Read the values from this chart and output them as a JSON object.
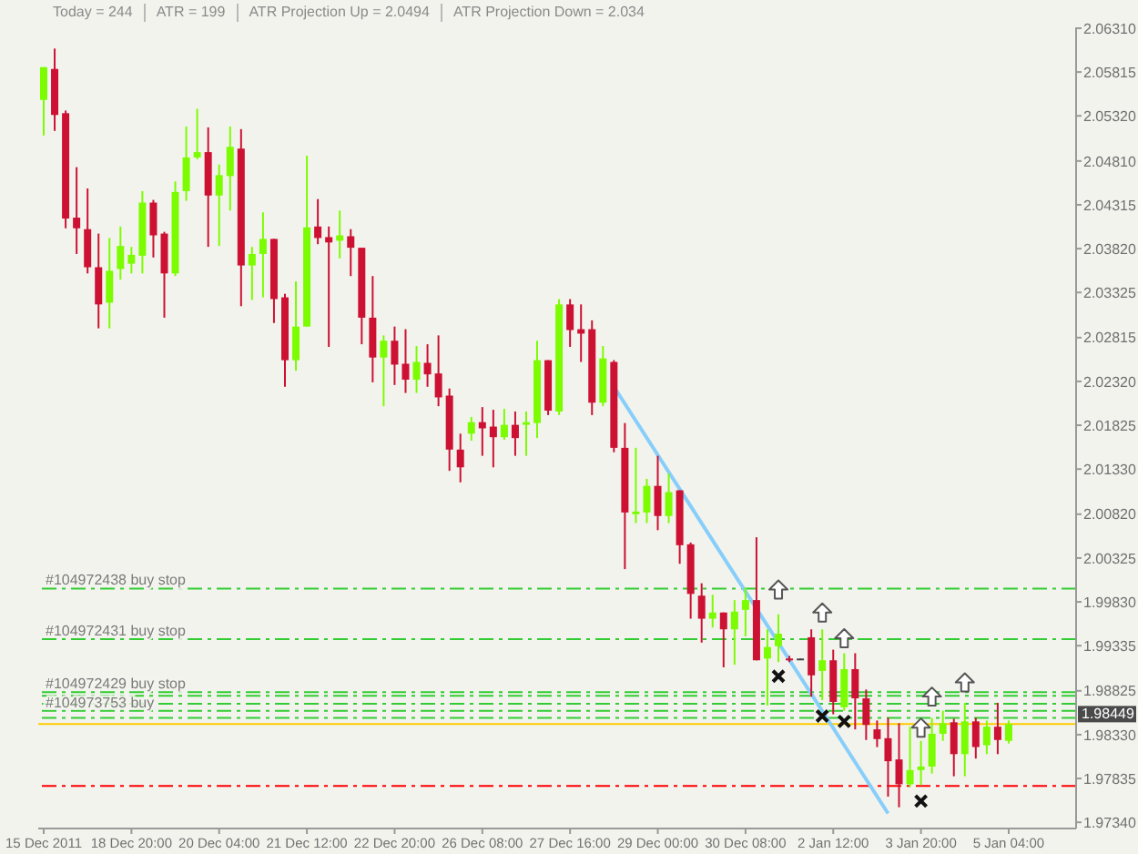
{
  "chart_data": {
    "type": "candlestick",
    "annotations": [
      "Today = 244",
      "ATR = 199",
      "ATR Projection Up = 2.0494",
      "ATR Projection Down = 2.034"
    ],
    "categories": [
      "15 Dec 2011",
      null,
      null,
      null,
      null,
      null,
      null,
      null,
      "18 Dec 20:00",
      null,
      null,
      null,
      null,
      null,
      null,
      null,
      "20 Dec 04:00",
      null,
      null,
      null,
      null,
      null,
      null,
      null,
      "21 Dec 12:00",
      null,
      null,
      null,
      null,
      null,
      null,
      null,
      "22 Dec 20:00",
      null,
      null,
      null,
      null,
      null,
      null,
      null,
      "26 Dec 08:00",
      null,
      null,
      null,
      null,
      null,
      null,
      null,
      "27 Dec 16:00",
      null,
      null,
      null,
      null,
      null,
      null,
      null,
      "29 Dec 00:00",
      null,
      null,
      null,
      null,
      null,
      null,
      null,
      "30 Dec 08:00",
      null,
      null,
      null,
      null,
      null,
      null,
      null,
      "2 Jan 12:00",
      null,
      null,
      null,
      null,
      null,
      null,
      null,
      "3 Jan 20:00",
      null,
      null,
      null,
      null,
      null,
      null,
      null,
      "5 Jan 04:00"
    ],
    "ohlc": [
      [
        2.055,
        2.0587,
        2.051,
        2.0587
      ],
      [
        2.0585,
        2.0608,
        2.0515,
        2.0533
      ],
      [
        2.0535,
        2.0538,
        2.0405,
        2.0416
      ],
      [
        2.0417,
        2.0474,
        2.0376,
        2.0405
      ],
      [
        2.0404,
        2.045,
        2.0354,
        2.0361
      ],
      [
        2.0361,
        2.0399,
        2.0292,
        2.0319
      ],
      [
        2.0321,
        2.0394,
        2.0292,
        2.0357
      ],
      [
        2.0359,
        2.0407,
        2.0347,
        2.0385
      ],
      [
        2.0365,
        2.0384,
        2.0354,
        2.0375
      ],
      [
        2.0374,
        2.0447,
        2.0354,
        2.0434
      ],
      [
        2.0434,
        2.0437,
        2.0372,
        2.0397
      ],
      [
        2.0399,
        2.0401,
        2.0304,
        2.0354
      ],
      [
        2.0354,
        2.0458,
        2.0351,
        2.0446
      ],
      [
        2.0447,
        2.052,
        2.0436,
        2.0485
      ],
      [
        2.0485,
        2.054,
        2.0483,
        2.0491
      ],
      [
        2.0491,
        2.0519,
        2.0384,
        2.0442
      ],
      [
        2.0442,
        2.0477,
        2.0385,
        2.0465
      ],
      [
        2.0464,
        2.052,
        2.0425,
        2.0497
      ],
      [
        2.0495,
        2.0517,
        2.0317,
        2.0363
      ],
      [
        2.0363,
        2.0384,
        2.0324,
        2.0376
      ],
      [
        2.0376,
        2.0423,
        2.0327,
        2.0393
      ],
      [
        2.0393,
        2.0393,
        2.0298,
        2.0325
      ],
      [
        2.0327,
        2.0331,
        2.0226,
        2.0256
      ],
      [
        2.0256,
        2.0345,
        2.0244,
        2.0294
      ],
      [
        2.0294,
        2.0487,
        2.0294,
        2.0406
      ],
      [
        2.0407,
        2.0438,
        2.0387,
        2.0394
      ],
      [
        2.0395,
        2.0407,
        2.0271,
        2.0389
      ],
      [
        2.0391,
        2.0425,
        2.0371,
        2.0397
      ],
      [
        2.0396,
        2.0404,
        2.0351,
        2.0383
      ],
      [
        2.0383,
        2.0383,
        2.0274,
        2.0304
      ],
      [
        2.0304,
        2.0351,
        2.0231,
        2.0259
      ],
      [
        2.0259,
        2.0284,
        2.0204,
        2.0278
      ],
      [
        2.0278,
        2.0294,
        2.0228,
        2.0251
      ],
      [
        2.0252,
        2.0291,
        2.0219,
        2.0234
      ],
      [
        2.0234,
        2.0272,
        2.0219,
        2.0254
      ],
      [
        2.0253,
        2.0274,
        2.0226,
        2.024
      ],
      [
        2.0241,
        2.0284,
        2.0204,
        2.0214
      ],
      [
        2.0216,
        2.0224,
        2.0131,
        2.0155
      ],
      [
        2.0155,
        2.0173,
        2.0118,
        2.0135
      ],
      [
        2.0173,
        2.0192,
        2.0165,
        2.0186
      ],
      [
        2.0186,
        2.0203,
        2.0148,
        2.0179
      ],
      [
        2.0181,
        2.02,
        2.0135,
        2.0169
      ],
      [
        2.0169,
        2.0201,
        2.0166,
        2.0183
      ],
      [
        2.0183,
        2.0198,
        2.0148,
        2.0168
      ],
      [
        2.0183,
        2.0198,
        2.0148,
        2.0186
      ],
      [
        2.0185,
        2.0278,
        2.0168,
        2.0256
      ],
      [
        2.0256,
        2.0256,
        2.0194,
        2.0199
      ],
      [
        2.0198,
        2.0325,
        2.0194,
        2.0319
      ],
      [
        2.0319,
        2.0325,
        2.0271,
        2.029
      ],
      [
        2.0291,
        2.0319,
        2.0254,
        2.0286
      ],
      [
        2.0291,
        2.0301,
        2.0194,
        2.0208
      ],
      [
        2.0208,
        2.0272,
        2.0204,
        2.0258
      ],
      [
        2.0254,
        2.0256,
        2.0152,
        2.0157
      ],
      [
        2.0157,
        2.0185,
        2.002,
        2.0084
      ],
      [
        2.0082,
        2.0157,
        2.0072,
        2.0085
      ],
      [
        2.0084,
        2.0122,
        2.0072,
        2.0114
      ],
      [
        2.0114,
        2.0148,
        2.0064,
        2.008
      ],
      [
        2.008,
        2.0128,
        2.0072,
        2.0107
      ],
      [
        2.0109,
        2.0109,
        2.0026,
        2.0047
      ],
      [
        2.0048,
        2.005,
        1.9964,
        1.9992
      ],
      [
        1.999,
        2.0004,
        1.9937,
        1.9964
      ],
      [
        1.9964,
        1.9991,
        1.9954,
        1.9971
      ],
      [
        1.9971,
        1.9971,
        1.9909,
        1.9952
      ],
      [
        1.9952,
        1.9985,
        1.9912,
        1.9972
      ],
      [
        1.9974,
        1.9999,
        1.9944,
        1.9985
      ],
      [
        1.9985,
        2.0056,
        1.9917,
        1.9917
      ],
      [
        1.9919,
        1.9952,
        1.9866,
        1.9932
      ],
      [
        1.9933,
        1.9969,
        1.9915,
        1.9947
      ],
      [
        1.9919,
        1.9922,
        1.9915,
        1.9919
      ],
      [
        1.9919,
        1.9919,
        1.9919,
        1.9919
      ],
      [
        1.9943,
        1.9952,
        1.9876,
        1.99
      ],
      [
        1.9905,
        1.9952,
        1.9872,
        1.9917
      ],
      [
        1.9917,
        1.9929,
        1.9856,
        1.987
      ],
      [
        1.9864,
        1.9925,
        1.986,
        1.9907
      ],
      [
        1.9907,
        1.9925,
        1.9839,
        1.9874
      ],
      [
        1.9874,
        1.9884,
        1.9827,
        1.9844
      ],
      [
        1.9839,
        1.9849,
        1.9819,
        1.9828
      ],
      [
        1.9829,
        1.9852,
        1.9763,
        1.9803
      ],
      [
        1.9805,
        1.9846,
        1.9751,
        1.9777
      ],
      [
        1.9777,
        1.9842,
        1.9774,
        1.9793
      ],
      [
        1.9793,
        1.9826,
        1.9776,
        1.9797
      ],
      [
        1.9797,
        1.9852,
        1.9789,
        1.9834
      ],
      [
        1.9834,
        1.986,
        1.9826,
        1.9846
      ],
      [
        1.9847,
        1.9851,
        1.9786,
        1.9811
      ],
      [
        1.9811,
        1.9869,
        1.9786,
        1.9848
      ],
      [
        1.9848,
        1.9852,
        1.9806,
        1.9819
      ],
      [
        1.9821,
        1.9849,
        1.9811,
        1.9842
      ],
      [
        1.9842,
        1.9869,
        1.9811,
        1.9827
      ],
      [
        1.9826,
        1.9849,
        1.9823,
        1.9845
      ]
    ],
    "colors": [
      "#7cfc00",
      "#cc1133",
      "#cc1133",
      "#cc1133",
      "#cc1133",
      "#cc1133",
      "#7cfc00",
      "#7cfc00",
      "#7cfc00",
      "#7cfc00",
      "#cc1133",
      "#cc1133",
      "#7cfc00",
      "#7cfc00",
      "#7cfc00",
      "#cc1133",
      "#7cfc00",
      "#7cfc00",
      "#cc1133",
      "#7cfc00",
      "#7cfc00",
      "#cc1133",
      "#cc1133",
      "#7cfc00",
      "#7cfc00",
      "#cc1133",
      "#cc1133",
      "#7cfc00",
      "#cc1133",
      "#cc1133",
      "#cc1133",
      "#7cfc00",
      "#cc1133",
      "#cc1133",
      "#7cfc00",
      "#cc1133",
      "#cc1133",
      "#cc1133",
      "#cc1133",
      "#7cfc00",
      "#cc1133",
      "#cc1133",
      "#7cfc00",
      "#cc1133",
      "#7cfc00",
      "#7cfc00",
      "#cc1133",
      "#7cfc00",
      "#cc1133",
      "#cc1133",
      "#cc1133",
      "#7cfc00",
      "#cc1133",
      "#cc1133",
      "#7cfc00",
      "#7cfc00",
      "#cc1133",
      "#7cfc00",
      "#cc1133",
      "#cc1133",
      "#cc1133",
      "#7cfc00",
      "#cc1133",
      "#7cfc00",
      "#7cfc00",
      "#cc1133",
      "#7cfc00",
      "#7cfc00",
      "#cc1133",
      "#444444",
      "#cc1133",
      "#7cfc00",
      "#cc1133",
      "#7cfc00",
      "#cc1133",
      "#cc1133",
      "#cc1133",
      "#cc1133",
      "#cc1133",
      "#7cfc00",
      "#7cfc00",
      "#7cfc00",
      "#7cfc00",
      "#cc1133",
      "#7cfc00",
      "#cc1133",
      "#7cfc00",
      "#cc1133",
      "#7cfc00"
    ],
    "series": [
      {
        "type": "line",
        "color": "#87cefa",
        "values": [
          null,
          null,
          null,
          null,
          null,
          null,
          null,
          null,
          null,
          null,
          null,
          null,
          null,
          null,
          null,
          null,
          null,
          null,
          null,
          null,
          null,
          null,
          null,
          null,
          null,
          null,
          null,
          null,
          null,
          null,
          null,
          null,
          null,
          null,
          null,
          null,
          null,
          null,
          null,
          null,
          null,
          null,
          null,
          null,
          null,
          null,
          null,
          null,
          null,
          null,
          null,
          null,
          2.0226,
          null,
          null,
          null,
          null,
          null,
          null,
          null,
          null,
          null,
          null,
          null,
          null,
          null,
          null,
          null,
          null,
          null,
          null,
          null,
          null,
          null,
          null,
          null,
          null,
          1.9744,
          null,
          null,
          null,
          null,
          null,
          null,
          null,
          null,
          null,
          null,
          null
        ]
      },
      {
        "type": "scatter",
        "marker": "triangle",
        "color": "#555555",
        "values": [
          null,
          null,
          null,
          null,
          null,
          null,
          null,
          null,
          null,
          null,
          null,
          null,
          null,
          null,
          null,
          null,
          null,
          null,
          null,
          null,
          null,
          null,
          null,
          null,
          null,
          null,
          null,
          null,
          null,
          null,
          null,
          null,
          null,
          null,
          null,
          null,
          null,
          null,
          null,
          null,
          null,
          null,
          null,
          null,
          null,
          null,
          null,
          null,
          null,
          null,
          null,
          null,
          null,
          null,
          null,
          null,
          null,
          null,
          null,
          null,
          null,
          null,
          null,
          null,
          null,
          null,
          null,
          1.9997,
          null,
          null,
          null,
          1.9971,
          null,
          1.9942,
          null,
          null,
          null,
          null,
          null,
          null,
          1.9841,
          1.9876,
          null,
          null,
          1.9892,
          null,
          null,
          null,
          null
        ]
      },
      {
        "type": "scatter",
        "marker": "cross",
        "color": "#111111",
        "values": [
          null,
          null,
          null,
          null,
          null,
          null,
          null,
          null,
          null,
          null,
          null,
          null,
          null,
          null,
          null,
          null,
          null,
          null,
          null,
          null,
          null,
          null,
          null,
          null,
          null,
          null,
          null,
          null,
          null,
          null,
          null,
          null,
          null,
          null,
          null,
          null,
          null,
          null,
          null,
          null,
          null,
          null,
          null,
          null,
          null,
          null,
          null,
          null,
          null,
          null,
          null,
          null,
          null,
          null,
          null,
          null,
          null,
          null,
          null,
          null,
          null,
          null,
          null,
          null,
          null,
          null,
          null,
          1.9899,
          null,
          null,
          null,
          1.9854,
          null,
          1.9848,
          null,
          null,
          null,
          null,
          null,
          null,
          1.9758,
          null,
          null,
          null,
          null,
          null,
          null,
          null,
          null
        ]
      }
    ],
    "ylim": [
      1.9727,
      2.0632
    ],
    "yticks": [
      {
        "value": 2.0631,
        "label": "2.06310"
      },
      {
        "value": 2.05815,
        "label": "2.05815"
      },
      {
        "value": 2.0532,
        "label": "2.05320"
      },
      {
        "value": 2.0481,
        "label": "2.04810"
      },
      {
        "value": 2.04315,
        "label": "2.04315"
      },
      {
        "value": 2.0382,
        "label": "2.03820"
      },
      {
        "value": 2.03325,
        "label": "2.03325"
      },
      {
        "value": 2.02815,
        "label": "2.02815"
      },
      {
        "value": 2.0232,
        "label": "2.02320"
      },
      {
        "value": 2.01825,
        "label": "2.01825"
      },
      {
        "value": 2.0133,
        "label": "2.01330"
      },
      {
        "value": 2.0082,
        "label": "2.00820"
      },
      {
        "value": 2.00325,
        "label": "2.00325"
      },
      {
        "value": 1.9983,
        "label": "1.99830"
      },
      {
        "value": 1.99335,
        "label": "1.99335"
      },
      {
        "value": 1.98825,
        "label": "1.98825"
      },
      {
        "value": 1.9833,
        "label": "1.98330"
      },
      {
        "value": 1.97835,
        "label": "1.97835"
      },
      {
        "value": 1.9734,
        "label": "1.97340"
      }
    ],
    "ref_lines": [
      {
        "axis": "y",
        "value": 1.9998,
        "label": "#104972438 buy stop",
        "color": "#32cd32",
        "line_style": "dashed"
      },
      {
        "axis": "y",
        "value": 1.9941,
        "label": "#104972431 buy stop",
        "color": "#32cd32",
        "line_style": "dashed"
      },
      {
        "axis": "y",
        "value": 1.9881,
        "label": "#104972429 buy stop",
        "color": "#32cd32",
        "line_style": "dashed"
      },
      {
        "axis": "y",
        "value": 1.9877,
        "color": "#32cd32",
        "line_style": "dashed"
      },
      {
        "axis": "y",
        "value": 1.9868,
        "color": "#32cd32",
        "line_style": "dashed"
      },
      {
        "axis": "y",
        "value": 1.986,
        "label": "#104973753 buy",
        "color": "#32cd32",
        "line_style": "dashed"
      },
      {
        "axis": "y",
        "value": 1.9852,
        "color": "#32cd32",
        "line_style": "dashed"
      },
      {
        "axis": "y",
        "value": 1.98449,
        "label": "1.98449",
        "color": "#ffcc00",
        "line_style": "solid"
      },
      {
        "axis": "y",
        "value": 1.9775,
        "color": "#ff0000",
        "line_style": "dashed"
      }
    ]
  }
}
